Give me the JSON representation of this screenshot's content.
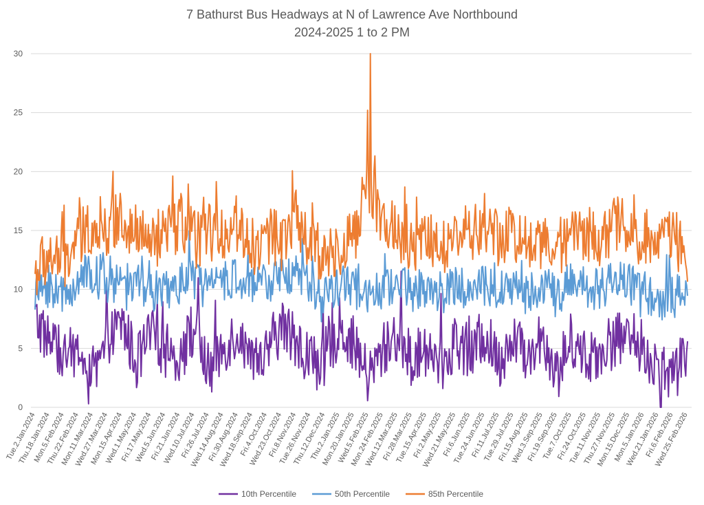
{
  "chart_data": {
    "type": "line",
    "title": "7 Bathurst Bus Headways at N of Lawrence Ave Northbound",
    "subtitle": "2024-2025 1 to 2 PM",
    "xlabel": "",
    "ylabel": "",
    "ylim": [
      0,
      30
    ],
    "yticks": [
      "0",
      "5",
      "10",
      "15",
      "20",
      "25",
      "30"
    ],
    "grid": true,
    "legend_position": "bottom",
    "categories": [
      "Tue.2.Jan.2024",
      "Thu.18.Jan.2024",
      "Mon.5.Feb.2024",
      "Thu.22.Feb.2024",
      "Mon.11.Mar.2024",
      "Wed.27.Mar.2024",
      "Mon.15.Apr.2024",
      "Wed.1.May.2024",
      "Fri.17.May.2024",
      "Wed.5.Jun.2024",
      "Fri.21.Jun.2024",
      "Wed.10.Jul.2024",
      "Fri.26.Jul.2024",
      "Wed.14.Aug.2024",
      "Fri.30.Aug.2024",
      "Wed.18.Sep.2024",
      "Fri.4.Oct.2024",
      "Wed.23.Oct.2024",
      "Fri.8.Nov.2024",
      "Tue.26.Nov.2024",
      "Thu.12.Dec.2024",
      "Thu.2.Jan.2025",
      "Mon.20.Jan.2025",
      "Wed.5.Feb.2025",
      "Mon.24.Feb.2025",
      "Wed.12.Mar.2025",
      "Fri.28.Mar.2025",
      "Tue.15.Apr.2025",
      "Fri.2.May.2025",
      "Wed.21.May.2025",
      "Fri.6.Jun.2025",
      "Tue.24.Jun.2025",
      "Fri.11.Jul.2025",
      "Tue.29.Jul.2025",
      "Fri.15.Aug.2025",
      "Wed.3.Sep.2025",
      "Fri.19.Sep.2025",
      "Tue.7.Oct.2025",
      "Fri.24.Oct.2025",
      "Tue.11.Nov.2025",
      "Thu.27.Nov.2025",
      "Mon.15.Dec.2025",
      "Mon.5.Jan.2026",
      "Wed.21.Jan.2026",
      "Fri.6.Feb.2026",
      "Wed.25.Feb.2026"
    ],
    "series": [
      {
        "name": "10th Percentile",
        "color": "#7030a0",
        "values": [
          7.5,
          5.6,
          4.2,
          4.8,
          2.1,
          5.4,
          7.2,
          3.8,
          6.1,
          5.0,
          4.4,
          6.8,
          2.9,
          5.2,
          6.5,
          3.1,
          4.7,
          7.0,
          5.5,
          4.1,
          3.6,
          6.9,
          5.3,
          2.4,
          4.9,
          6.2,
          3.8,
          5.1,
          3.3,
          5.8,
          4.5,
          6.1,
          3.9,
          5.6,
          4.2,
          6.4,
          2.7,
          5.9,
          4.3,
          4.8,
          5.7,
          6.0,
          4.9,
          3.2,
          2.6,
          4.5
        ],
        "min_low": 0.0
      },
      {
        "name": "50th Percentile",
        "color": "#5b9bd5",
        "values": [
          9.8,
          10.3,
          9.4,
          10.9,
          11.4,
          10.2,
          11.0,
          10.5,
          10.0,
          9.7,
          10.6,
          10.8,
          9.9,
          10.4,
          11.1,
          10.0,
          10.7,
          10.9,
          11.6,
          10.1,
          9.6,
          10.3,
          10.2,
          9.2,
          10.0,
          10.6,
          9.8,
          10.3,
          9.5,
          10.2,
          9.9,
          10.4,
          9.7,
          10.1,
          9.6,
          10.5,
          9.3,
          10.8,
          10.2,
          10.0,
          11.2,
          10.4,
          9.9,
          8.6,
          9.4,
          8.9
        ]
      },
      {
        "name": "85th Percentile",
        "color": "#ed7d31",
        "values": [
          11.5,
          12.8,
          12.3,
          14.1,
          15.6,
          15.2,
          16.4,
          14.6,
          14.0,
          14.5,
          15.8,
          14.2,
          14.8,
          15.0,
          15.7,
          13.6,
          14.3,
          14.6,
          16.2,
          13.4,
          12.9,
          13.7,
          14.2,
          19.4,
          15.6,
          14.8,
          13.3,
          14.5,
          13.1,
          14.7,
          14.9,
          15.1,
          14.2,
          14.9,
          13.9,
          14.1,
          13.2,
          15.0,
          14.8,
          14.4,
          15.5,
          15.3,
          14.1,
          15.1,
          14.6,
          13.0
        ],
        "peak": 30
      }
    ]
  }
}
